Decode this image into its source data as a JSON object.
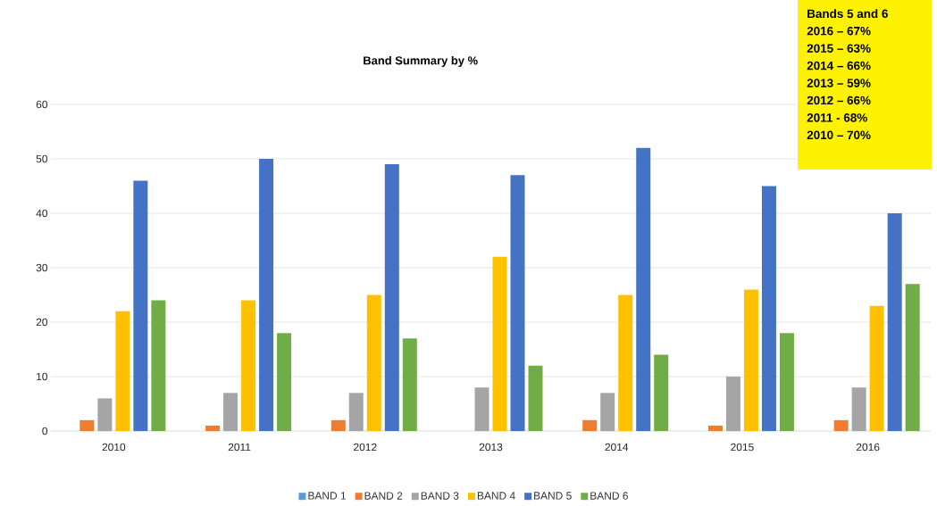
{
  "chart_data": {
    "type": "bar",
    "title": "Band Summary by %",
    "categories": [
      "2010",
      "2011",
      "2012",
      "2013",
      "2014",
      "2015",
      "2016"
    ],
    "series": [
      {
        "name": "BAND 1",
        "color": "#5b9bd5",
        "values": [
          0,
          0,
          0,
          0,
          0,
          0,
          0
        ]
      },
      {
        "name": "BAND 2",
        "color": "#ed7d31",
        "values": [
          2,
          1,
          2,
          0,
          2,
          1,
          2
        ]
      },
      {
        "name": "BAND 3",
        "color": "#a5a5a5",
        "values": [
          6,
          7,
          7,
          8,
          7,
          10,
          8
        ]
      },
      {
        "name": "BAND 4",
        "color": "#ffc000",
        "values": [
          22,
          24,
          25,
          32,
          25,
          26,
          23
        ]
      },
      {
        "name": "BAND 5",
        "color": "#4472c4",
        "values": [
          46,
          50,
          49,
          47,
          52,
          45,
          40
        ]
      },
      {
        "name": "BAND 6",
        "color": "#70ad47",
        "values": [
          24,
          18,
          17,
          12,
          14,
          18,
          27
        ]
      }
    ],
    "ylim": [
      0,
      60
    ],
    "yticks": [
      0,
      10,
      20,
      30,
      40,
      50,
      60
    ],
    "grid": "y",
    "legend": "bottom",
    "annotations": [
      "Bands 5 and 6",
      "2016 – 67%",
      "2015 – 63%",
      "2014 – 66%",
      "2013 – 59%",
      "2012 – 66%",
      "2011 -  68%",
      "2010 – 70%"
    ]
  }
}
